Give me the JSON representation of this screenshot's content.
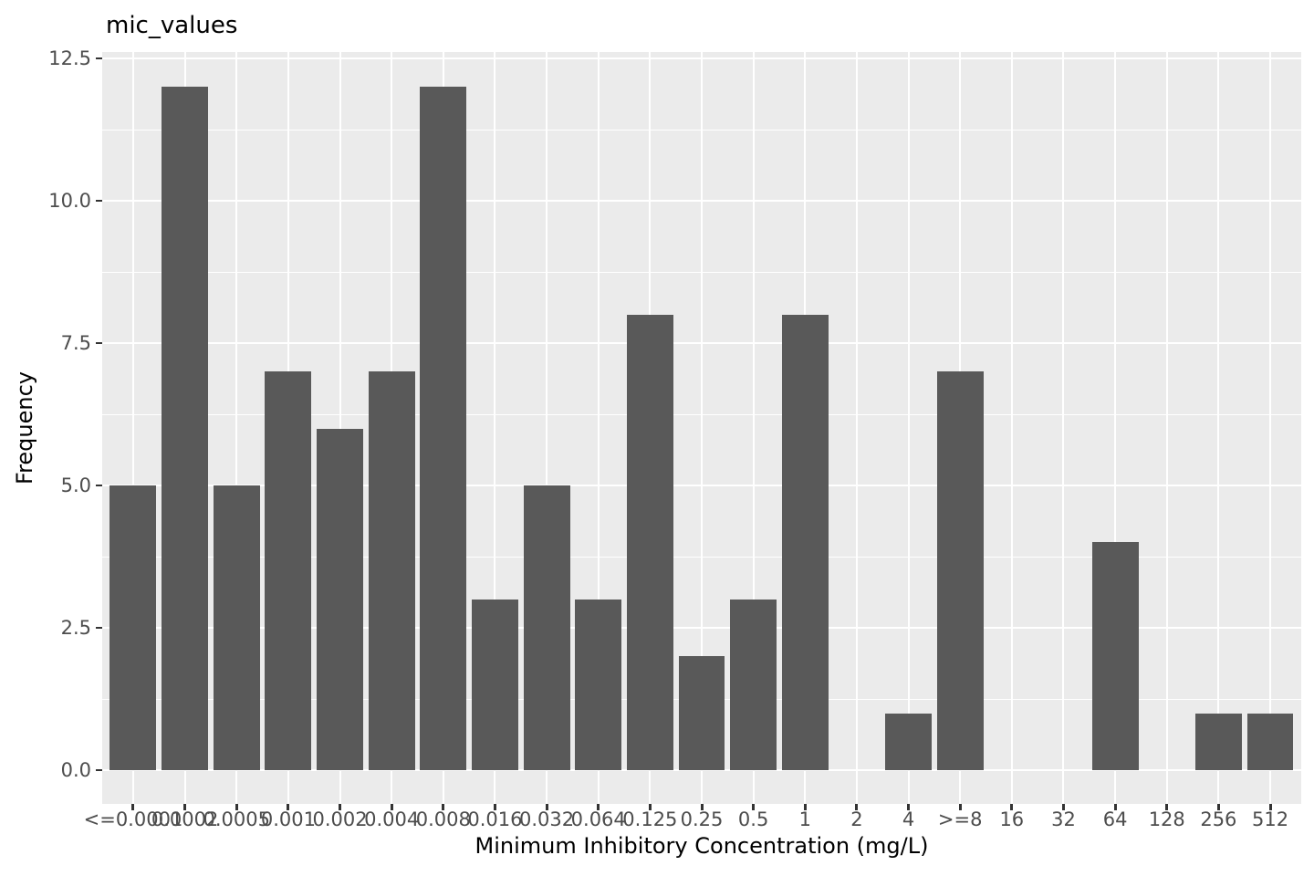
{
  "chart_data": {
    "type": "bar",
    "title": "mic_values",
    "xlabel": "Minimum Inhibitory Concentration (mg/L)",
    "ylabel": "Frequency",
    "categories": [
      "<=0.0001",
      "0.0002",
      "0.0005",
      "0.001",
      "0.002",
      "0.004",
      "0.008",
      "0.016",
      "0.032",
      "0.064",
      "0.125",
      "0.25",
      "0.5",
      "1",
      "2",
      "4",
      ">=8",
      "16",
      "32",
      "64",
      "128",
      "256",
      "512"
    ],
    "values": [
      5,
      12,
      5,
      7,
      6,
      7,
      12,
      3,
      5,
      3,
      8,
      2,
      3,
      8,
      0,
      1,
      7,
      0,
      0,
      4,
      0,
      1,
      1
    ],
    "y_ticks": [
      0.0,
      2.5,
      5.0,
      7.5,
      10.0,
      12.5
    ],
    "y_tick_labels": [
      "0.0",
      "2.5",
      "5.0",
      "7.5",
      "10.0",
      "12.5"
    ],
    "y_minor_ticks": [
      1.25,
      3.75,
      6.25,
      8.75,
      11.25
    ],
    "ylim": [
      -0.6,
      12.6
    ],
    "grid": "horizontal major+minor white lines, vertical major white line per category, shown on grey panel",
    "legend": "none",
    "colors": {
      "bar_fill": "#595959",
      "panel_background": "#EBEBEB",
      "gridline": "#FFFFFF",
      "axis_text": "#4D4D4D",
      "tick_mark": "#333333",
      "title_text": "#000000",
      "figure_background": "#FFFFFF"
    }
  }
}
